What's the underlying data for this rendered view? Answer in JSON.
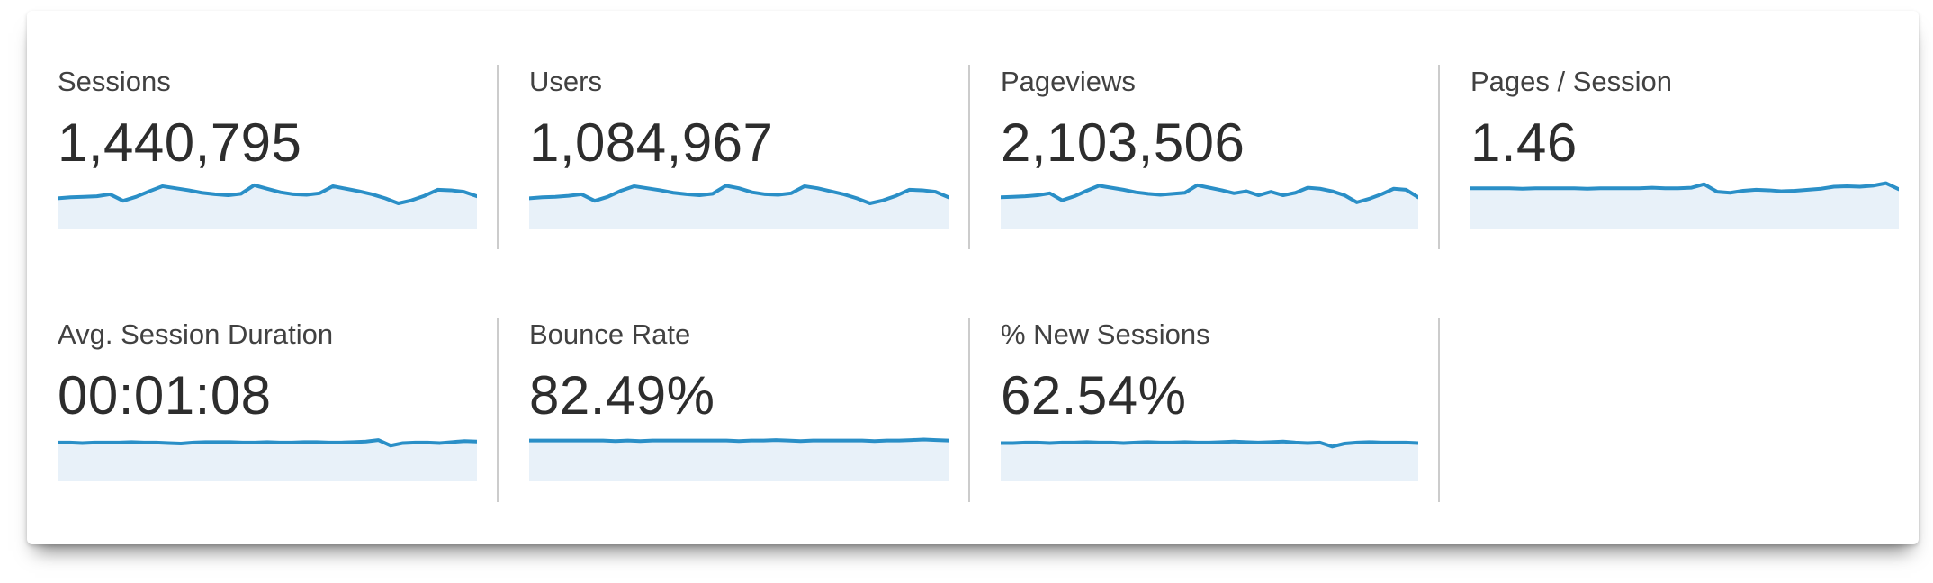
{
  "panel": {
    "background": "#ffffff"
  },
  "style": {
    "line_color": "#2a8fc7",
    "fill_color": "#e8f1f9",
    "divider_color": "#cccccc",
    "label_color": "#414141",
    "value_color": "#2d2d2d"
  },
  "cards": [
    {
      "id": "sessions",
      "label": "Sessions",
      "value": "1,440,795",
      "sparkline": [
        60,
        62,
        63,
        64,
        68,
        55,
        63,
        74,
        84,
        80,
        76,
        71,
        68,
        66,
        69,
        86,
        79,
        72,
        68,
        67,
        70,
        84,
        79,
        74,
        68,
        60,
        50,
        56,
        65,
        77,
        76,
        73,
        64
      ]
    },
    {
      "id": "users",
      "label": "Users",
      "value": "1,084,967",
      "sparkline": [
        60,
        62,
        63,
        65,
        68,
        55,
        63,
        75,
        84,
        80,
        76,
        71,
        68,
        66,
        69,
        85,
        80,
        72,
        68,
        67,
        70,
        84,
        80,
        74,
        68,
        60,
        50,
        56,
        65,
        77,
        76,
        73,
        62
      ]
    },
    {
      "id": "pageviews",
      "label": "Pageviews",
      "value": "2,103,506",
      "sparkline": [
        62,
        63,
        64,
        66,
        70,
        56,
        64,
        75,
        85,
        81,
        77,
        72,
        69,
        67,
        69,
        71,
        86,
        81,
        76,
        70,
        74,
        66,
        73,
        66,
        71,
        81,
        79,
        74,
        66,
        52,
        59,
        68,
        79,
        77,
        62
      ]
    },
    {
      "id": "pages-per-session",
      "label": "Pages / Session",
      "value": "1.46",
      "sparkline": [
        80,
        80,
        80,
        80,
        79,
        80,
        80,
        80,
        80,
        79,
        80,
        80,
        80,
        80,
        81,
        80,
        80,
        81,
        88,
        73,
        71,
        75,
        77,
        76,
        74,
        75,
        77,
        79,
        83,
        84,
        83,
        85,
        90,
        78
      ]
    },
    {
      "id": "avg-session-duration",
      "label": "Avg. Session Duration",
      "value": "00:01:08",
      "sparkline": [
        77,
        77,
        76,
        77,
        77,
        77,
        78,
        77,
        77,
        76,
        75,
        77,
        78,
        78,
        78,
        77,
        77,
        78,
        77,
        77,
        78,
        78,
        77,
        77,
        78,
        79,
        82,
        71,
        76,
        77,
        77,
        76,
        78,
        80,
        79
      ]
    },
    {
      "id": "bounce-rate",
      "label": "Bounce Rate",
      "value": "82.49%",
      "sparkline": [
        81,
        81,
        81,
        81,
        81,
        81,
        81,
        80,
        81,
        80,
        81,
        81,
        81,
        81,
        81,
        81,
        81,
        80,
        81,
        81,
        82,
        81,
        80,
        81,
        81,
        81,
        81,
        81,
        80,
        81,
        81,
        82,
        83,
        82,
        81
      ]
    },
    {
      "id": "percent-new-sessions",
      "label": "% New Sessions",
      "value": "62.54%",
      "sparkline": [
        76,
        76,
        77,
        77,
        76,
        77,
        77,
        78,
        77,
        77,
        76,
        77,
        78,
        77,
        77,
        78,
        77,
        77,
        78,
        79,
        78,
        77,
        78,
        79,
        77,
        76,
        77,
        69,
        75,
        77,
        78,
        77,
        77,
        77,
        76
      ]
    }
  ],
  "chart_data": {
    "type": "area",
    "note": "sparkline values are relative heights 0-100 over equal time steps",
    "series": [
      {
        "name": "Sessions",
        "total": 1440795
      },
      {
        "name": "Users",
        "total": 1084967
      },
      {
        "name": "Pageviews",
        "total": 2103506
      },
      {
        "name": "Pages / Session",
        "total": 1.46
      },
      {
        "name": "Avg. Session Duration",
        "total": "00:01:08"
      },
      {
        "name": "Bounce Rate",
        "total": "82.49%"
      },
      {
        "name": "% New Sessions",
        "total": "62.54%"
      }
    ]
  }
}
